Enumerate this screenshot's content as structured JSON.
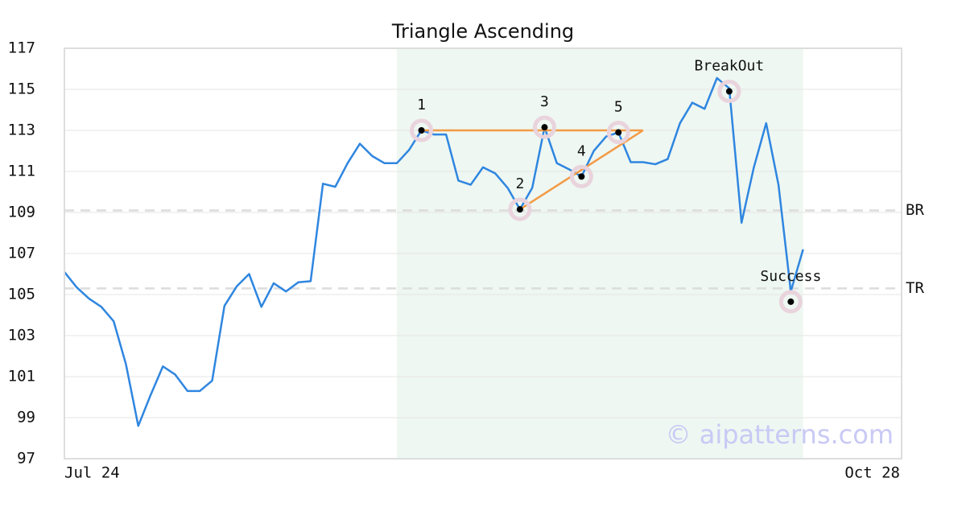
{
  "chart_data": {
    "type": "line",
    "title": "Triangle Ascending",
    "xlim": [
      0,
      68
    ],
    "xticks": [
      {
        "value": 0,
        "label": "Jul 24"
      },
      {
        "value": 68,
        "label": "Oct 28"
      }
    ],
    "ylim": [
      97,
      117
    ],
    "yticks": [
      97,
      99,
      101,
      103,
      105,
      107,
      109,
      111,
      113,
      115,
      117
    ],
    "grid": true,
    "x": [
      0,
      1,
      2,
      3,
      4,
      5,
      6,
      7,
      8,
      9,
      10,
      11,
      12,
      13,
      14,
      15,
      16,
      17,
      18,
      19,
      20,
      21,
      22,
      23,
      24,
      25,
      26,
      27,
      28,
      29,
      30,
      31,
      32,
      33,
      34,
      35,
      36,
      37,
      38,
      39,
      40,
      41,
      42,
      43,
      44,
      45,
      46,
      47,
      48,
      49,
      50,
      51,
      52,
      53,
      54,
      55,
      56,
      57,
      58,
      59,
      60
    ],
    "series": [
      {
        "color": "#2f86e0",
        "values": [
          106.1,
          105.35,
          104.8,
          104.4,
          103.7,
          101.6,
          98.6,
          100.1,
          101.5,
          101.1,
          100.3,
          100.3,
          100.8,
          104.45,
          105.4,
          106.0,
          104.4,
          105.55,
          105.15,
          105.6,
          105.65,
          110.4,
          110.25,
          111.4,
          112.35,
          111.75,
          111.4,
          111.4,
          112.05,
          113.0,
          112.8,
          112.8,
          110.55,
          110.35,
          111.2,
          110.9,
          110.2,
          109.15,
          110.2,
          113.15,
          111.4,
          111.1,
          110.75,
          112.0,
          112.7,
          112.9,
          111.45,
          111.45,
          111.35,
          111.6,
          113.35,
          114.35,
          114.05,
          115.55,
          115.05,
          108.5,
          111.2,
          113.35,
          110.35,
          105.15,
          107.2
        ]
      }
    ],
    "highlight": {
      "x": [
        27,
        60
      ],
      "color": "#eef7f2"
    },
    "triangle": {
      "color": "#f39a45",
      "lines": [
        {
          "x": [
            29,
            47
          ],
          "values": [
            113.0,
            113.0
          ]
        },
        {
          "x": [
            37,
            47
          ],
          "values": [
            109.15,
            113.0
          ]
        }
      ]
    },
    "patterns": [
      {
        "label": "1",
        "x": 29,
        "value": 113.0
      },
      {
        "label": "2",
        "x": 37,
        "value": 109.15
      },
      {
        "label": "3",
        "x": 39,
        "value": 113.15
      },
      {
        "label": "4",
        "x": 42,
        "value": 110.75
      },
      {
        "label": "5",
        "x": 45,
        "value": 112.9
      },
      {
        "label": "BreakOut",
        "x": 54,
        "value": 114.9
      },
      {
        "label": "Success",
        "x": 59,
        "value": 104.65
      }
    ],
    "reference_lines": [
      {
        "label": "BR",
        "value": 109.1
      },
      {
        "label": "TR",
        "value": 105.3
      }
    ],
    "watermark": "© aipatterns.com"
  }
}
